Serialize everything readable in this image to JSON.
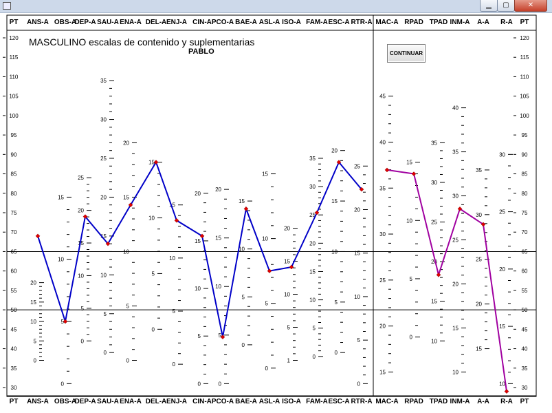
{
  "window": {
    "minimize": "▁",
    "maximize": "▢",
    "close": "✕"
  },
  "buttons": {
    "continuar": "CONTINUAR"
  },
  "chart_data": {
    "type": "line",
    "title": "MASCULINO escalas de contenido y suplementarias",
    "subtitle": "PABLO",
    "axis_label": "PT",
    "ylim": [
      30,
      120
    ],
    "ticks": [
      30,
      35,
      40,
      45,
      50,
      55,
      60,
      65,
      70,
      75,
      80,
      85,
      90,
      95,
      100,
      105,
      110,
      115,
      120
    ],
    "reference_lines": [
      65,
      50
    ],
    "colors": {
      "content": "#0000c8",
      "supplementary": "#a000a0",
      "marker": "#e00000"
    },
    "content_scales": {
      "categories": [
        "ANS-A",
        "OBS-A",
        "DEP-A",
        "SAU-A",
        "ENA-A",
        "DEL-A",
        "ENJ-A",
        "CIN-A",
        "PCO-A",
        "BAE-A",
        "ASL-A",
        "ISO-A",
        "FAM-A",
        "ESC-A",
        "RTR-A"
      ],
      "values": [
        69,
        47,
        74,
        67,
        77,
        88,
        73,
        69,
        43,
        76,
        60,
        61,
        75,
        88,
        81
      ]
    },
    "supplementary_scales": {
      "categories": [
        "MAC-A",
        "RPAD",
        "TPAD",
        "INM-A",
        "A-A",
        "R-A"
      ],
      "values": [
        86,
        85,
        59,
        76,
        72,
        29
      ]
    },
    "raw_score_ticks": [
      {
        "pt": [
          37,
          57,
          68
        ],
        "labels": [
          "0",
          "5",
          "10",
          "15",
          "20"
        ]
      },
      {
        "pt": [
          31,
          79
        ],
        "labels": [
          "0",
          "5",
          "10",
          "15"
        ]
      },
      {
        "pt": [
          42,
          84
        ],
        "labels": [
          "0",
          "5",
          "10",
          "15",
          "20",
          "25"
        ]
      },
      {
        "pt": [
          39,
          109
        ],
        "labels": [
          "0",
          "5",
          "10",
          "15",
          "20",
          "25",
          "30",
          "35"
        ]
      },
      {
        "pt": [
          37,
          93
        ],
        "labels": [
          "0",
          "5",
          "10",
          "15",
          "20"
        ]
      },
      {
        "pt": [
          45,
          88
        ],
        "labels": [
          "0",
          "5",
          "10",
          "15"
        ]
      },
      {
        "pt": [
          36,
          77
        ],
        "labels": [
          "0",
          "5",
          "10",
          "15"
        ]
      },
      {
        "pt": [
          31,
          80
        ],
        "labels": [
          "0",
          "5",
          "10",
          "15",
          "20"
        ]
      },
      {
        "pt": [
          31,
          81
        ],
        "labels": [
          "0",
          "5",
          "10",
          "15",
          "20"
        ]
      },
      {
        "pt": [
          41,
          78
        ],
        "labels": [
          "0",
          "5",
          "10",
          "15"
        ]
      },
      {
        "pt": [
          35,
          85
        ],
        "labels": [
          "0",
          "5",
          "10",
          "15"
        ]
      },
      {
        "pt": [
          37,
          71
        ],
        "labels": [
          "1",
          "5",
          "10",
          "15",
          "20"
        ]
      },
      {
        "pt": [
          38,
          89
        ],
        "labels": [
          "0",
          "5",
          "10",
          "15",
          "20",
          "25",
          "30",
          "35"
        ]
      },
      {
        "pt": [
          39,
          91
        ],
        "labels": [
          "0",
          "5",
          "10",
          "15",
          "20"
        ]
      },
      {
        "pt": [
          31,
          87
        ],
        "labels": [
          "0",
          "5",
          "10",
          "15",
          "20",
          "25"
        ]
      },
      {
        "pt": [
          34,
          105
        ],
        "labels": [
          "15",
          "20",
          "25",
          "30",
          "35",
          "40",
          "45"
        ]
      },
      {
        "pt": [
          43,
          88
        ],
        "labels": [
          "0",
          "5",
          "10",
          "15"
        ]
      },
      {
        "pt": [
          42,
          93
        ],
        "labels": [
          "10",
          "15",
          "20",
          "25",
          "30",
          "35"
        ]
      },
      {
        "pt": [
          34,
          102
        ],
        "labels": [
          "10",
          "15",
          "20",
          "25",
          "30",
          "35",
          "40"
        ]
      },
      {
        "pt": [
          40,
          86
        ],
        "labels": [
          "15",
          "20",
          "25",
          "30",
          "35"
        ]
      },
      {
        "pt": [
          31,
          90
        ],
        "labels": [
          "10",
          "15",
          "20",
          "25",
          "30"
        ]
      }
    ]
  }
}
